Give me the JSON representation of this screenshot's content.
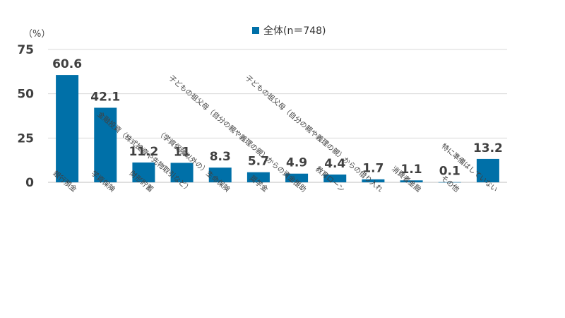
{
  "chart_data": {
    "type": "bar",
    "unit_label": "（%）",
    "legend": "全体(n＝748)",
    "bar_color": "#0070a8",
    "grid_color": "#d9d9d9",
    "ylim": [
      0,
      75
    ],
    "yticks": [
      0,
      25,
      50,
      75
    ],
    "grid": true,
    "legend_position": "top-center",
    "categories": [
      "銀行預金",
      "学資保険",
      "財形貯蓄",
      "金融投資（株式投資や先物取引など）",
      "（学資保険以外の）生命保険",
      "奨学金",
      "子どもの祖父母（自分の親や義理の親）からの資金援助",
      "教育ローン",
      "子どもの祖父母（自分の親や義理の親）からの借り入れ",
      "消費者金融",
      "その他",
      "特に準備はしていない"
    ],
    "series": [
      {
        "name": "全体(n＝748)",
        "values": [
          60.6,
          42.1,
          11.2,
          11,
          8.3,
          5.7,
          4.9,
          4.4,
          1.7,
          1.1,
          0.1,
          13.2
        ],
        "labels": [
          "60.6",
          "42.1",
          "11.2",
          "11",
          "8.3",
          "5.7",
          "4.9",
          "4.4",
          "1.7",
          "1.1",
          "0.1",
          "13.2"
        ]
      }
    ]
  }
}
